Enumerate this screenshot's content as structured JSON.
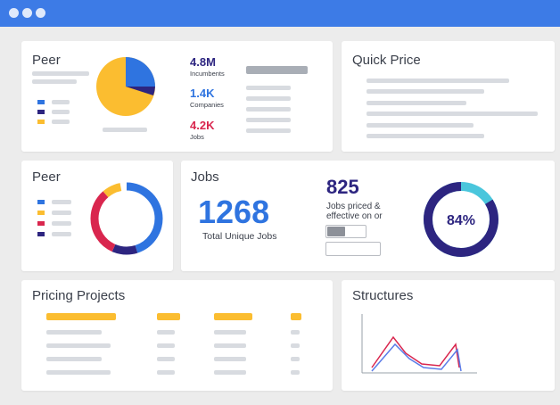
{
  "colors": {
    "title_bar": "#3d7be6",
    "blue": "#2f74e0",
    "navy": "#2d2580",
    "yellow": "#fbbd30",
    "red": "#d9264e",
    "cyan": "#4ac6dc"
  },
  "peer_card": {
    "title": "Peer",
    "metrics": [
      {
        "value": "4.8M",
        "label": "Incumbents",
        "color": "#2d2580"
      },
      {
        "value": "1.4K",
        "label": "Companies",
        "color": "#2f74e0"
      },
      {
        "value": "4.2K",
        "label": "Jobs",
        "color": "#d9264e"
      }
    ]
  },
  "quick_price_card": {
    "title": "Quick Price"
  },
  "peer_donut_card": {
    "title": "Peer"
  },
  "jobs_card": {
    "title": "Jobs",
    "total": "1268",
    "total_label": "Total Unique Jobs",
    "priced": "825",
    "priced_label_line1": "Jobs priced &",
    "priced_label_line2": "effective on or",
    "progress_percent": "84%",
    "progress_value": 0.84
  },
  "pricing_projects_card": {
    "title": "Pricing Projects"
  },
  "structures_card": {
    "title": "Structures"
  }
}
